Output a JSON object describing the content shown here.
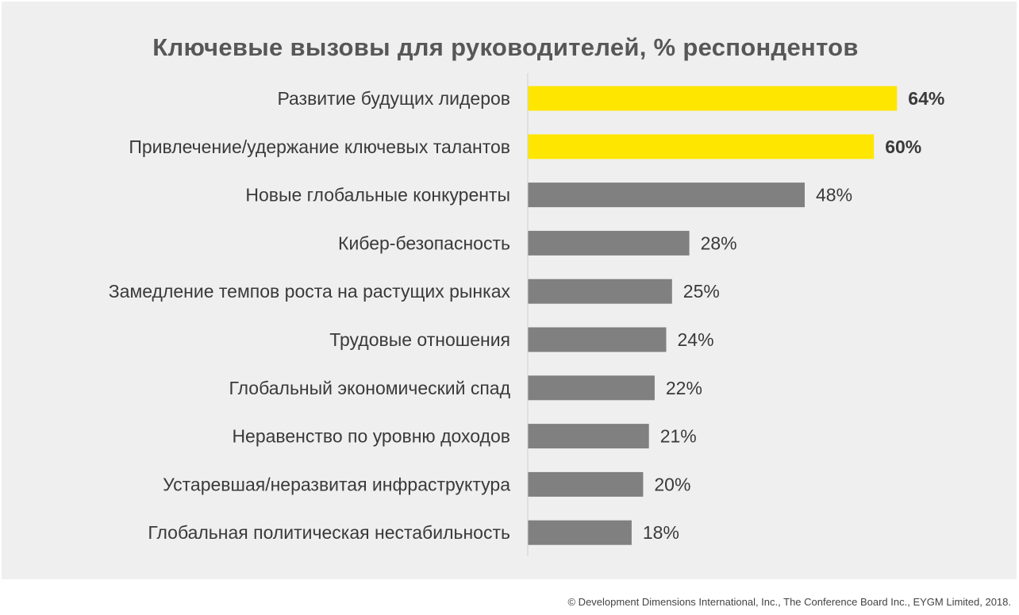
{
  "chart_data": {
    "type": "bar",
    "orientation": "horizontal",
    "title": "Ключевые вызовы для руководителей, % респондентов",
    "categories": [
      "Развитие будущих лидеров",
      "Привлечение/удержание ключевых талантов",
      "Новые глобальные конкуренты",
      "Кибер-безопасность",
      "Замедление темпов роста на растущих рынках",
      "Трудовые отношения",
      "Глобальный экономический спад",
      "Неравенство по уровню доходов",
      "Устаревшая/неразвитая инфраструктура",
      "Глобальная политическая нестабильность"
    ],
    "values": [
      64,
      60,
      48,
      28,
      25,
      24,
      22,
      21,
      20,
      18
    ],
    "value_labels": [
      "64%",
      "60%",
      "48%",
      "28%",
      "25%",
      "24%",
      "22%",
      "21%",
      "20%",
      "18%"
    ],
    "highlighted": [
      true,
      true,
      false,
      false,
      false,
      false,
      false,
      false,
      false,
      false
    ],
    "xlim": [
      0,
      100
    ],
    "grid": false,
    "legend": "none",
    "colors": {
      "highlight": "#ffe600",
      "default": "#808080",
      "axis": "#d0d0d0",
      "label": "#3a3a3a"
    }
  },
  "footer": {
    "credit": "© Development Dimensions International, Inc., The Conference Board Inc., EYGM Limited, 2018."
  }
}
